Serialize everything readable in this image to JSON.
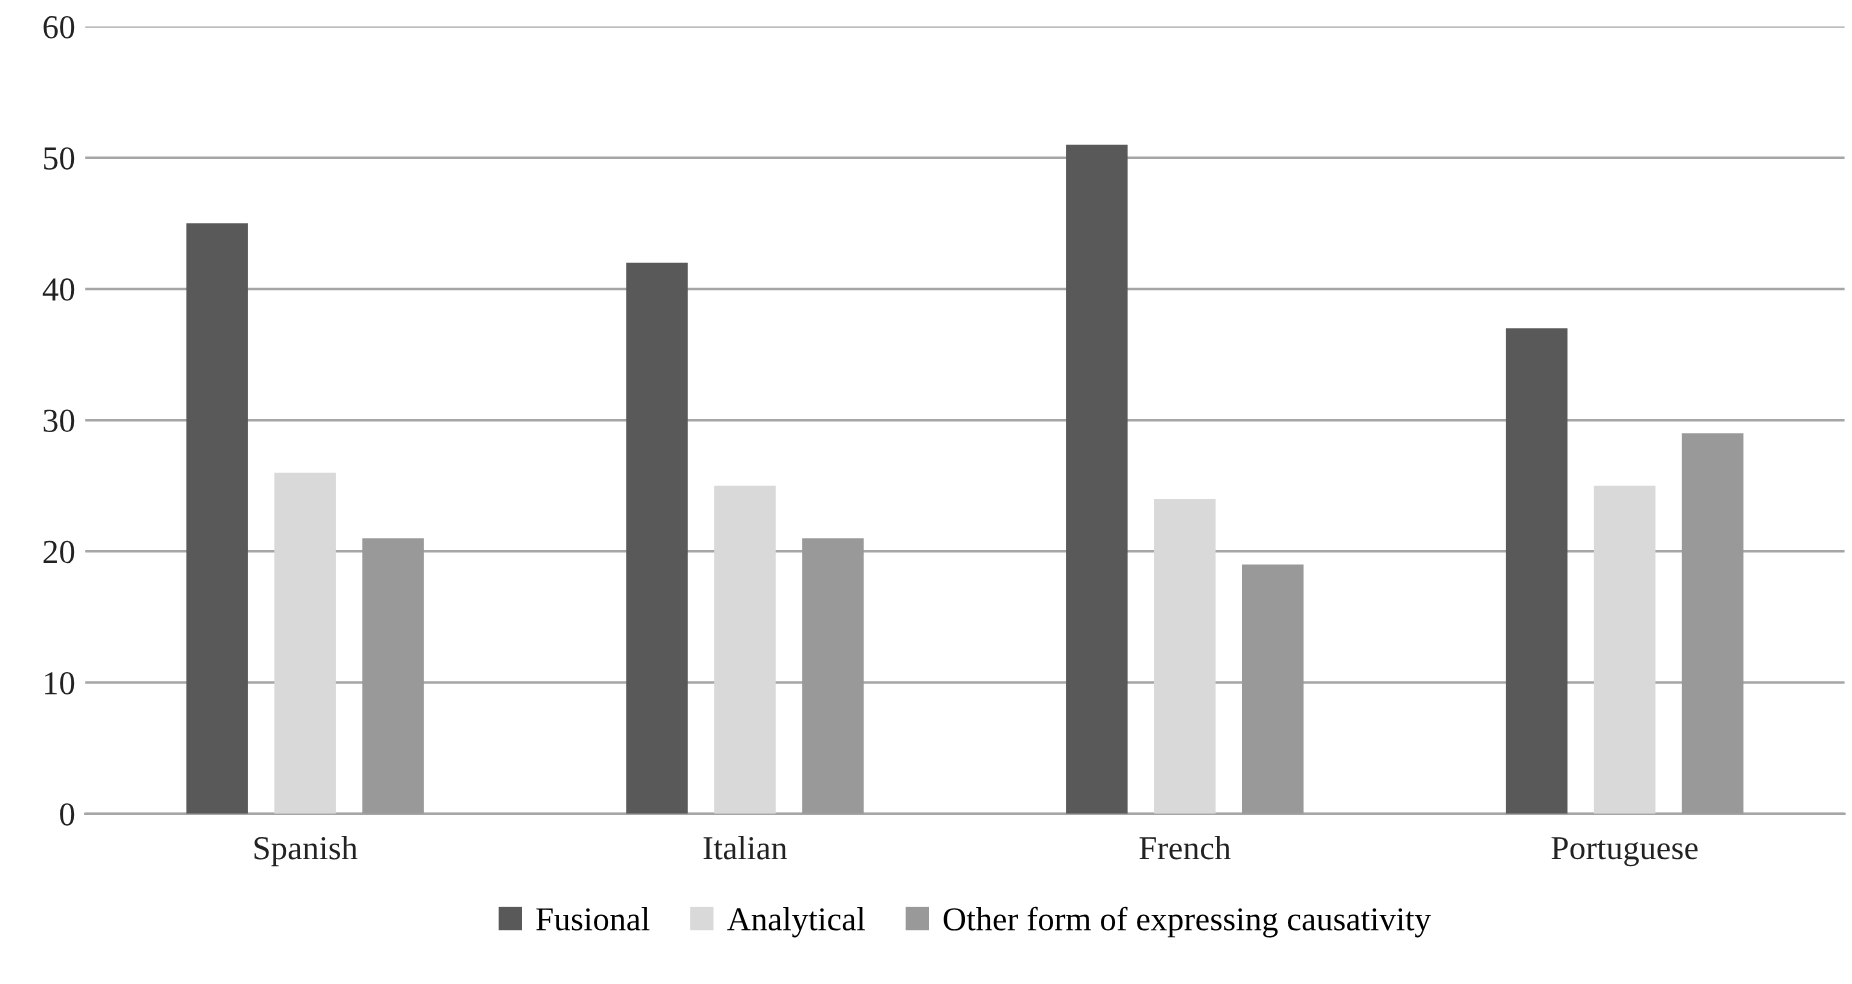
{
  "chart_data": {
    "type": "bar",
    "categories": [
      "Spanish",
      "Italian",
      "French",
      "Portuguese"
    ],
    "series": [
      {
        "name": "Fusional",
        "color": "#595959",
        "values": [
          45,
          42,
          51,
          37
        ]
      },
      {
        "name": "Analytical",
        "color": "#d9d9d9",
        "values": [
          26,
          25,
          24,
          25
        ]
      },
      {
        "name": "Other form of expressing causativity",
        "color": "#999999",
        "values": [
          21,
          21,
          19,
          29
        ]
      }
    ],
    "ylim": [
      0,
      60
    ],
    "yticks": [
      0,
      10,
      20,
      30,
      40,
      50,
      60
    ],
    "grid": "y",
    "legend": "bottom"
  }
}
